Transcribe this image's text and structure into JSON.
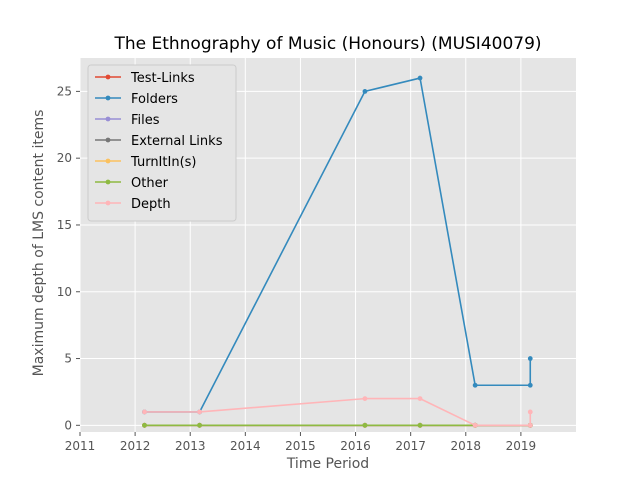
{
  "chart_data": {
    "type": "line",
    "title": "The Ethnography of Music (Honours) (MUSI40079)",
    "xlabel": "Time Period",
    "ylabel": "Maximum depth of LMS content items",
    "xlim": [
      2011,
      2020
    ],
    "ylim": [
      -0.5,
      27.5
    ],
    "xticks": [
      "2011",
      "2012",
      "2013",
      "2014",
      "2015",
      "2016",
      "2017",
      "2018",
      "2019"
    ],
    "yticks": [
      "0",
      "5",
      "10",
      "15",
      "20",
      "25"
    ],
    "grid": true,
    "legend_position": "upper-left",
    "series": [
      {
        "name": "Test-Links",
        "color": "#e24a33",
        "points": [
          [
            2012.17,
            0
          ],
          [
            2013.17,
            0
          ],
          [
            2016.17,
            0
          ],
          [
            2017.17,
            0
          ],
          [
            2018.17,
            0
          ],
          [
            2019.17,
            0
          ]
        ]
      },
      {
        "name": "Folders",
        "color": "#348abd",
        "points": [
          [
            2012.17,
            1
          ],
          [
            2013.17,
            1
          ],
          [
            2016.17,
            25
          ],
          [
            2017.17,
            26
          ],
          [
            2018.17,
            3
          ],
          [
            2019.17,
            3
          ],
          [
            2019.17,
            5
          ]
        ]
      },
      {
        "name": "Files",
        "color": "#988ed5",
        "points": [
          [
            2012.17,
            0
          ],
          [
            2013.17,
            0
          ],
          [
            2016.17,
            0
          ],
          [
            2017.17,
            0
          ],
          [
            2018.17,
            0
          ],
          [
            2019.17,
            0
          ]
        ]
      },
      {
        "name": "External Links",
        "color": "#777777",
        "points": [
          [
            2012.17,
            0
          ],
          [
            2013.17,
            0
          ],
          [
            2016.17,
            0
          ],
          [
            2017.17,
            0
          ],
          [
            2018.17,
            0
          ],
          [
            2019.17,
            0
          ]
        ]
      },
      {
        "name": "TurnItIn(s)",
        "color": "#fbc15e",
        "points": [
          [
            2012.17,
            0
          ],
          [
            2013.17,
            0
          ],
          [
            2016.17,
            0
          ],
          [
            2017.17,
            0
          ],
          [
            2018.17,
            0
          ],
          [
            2019.17,
            0
          ]
        ]
      },
      {
        "name": "Other",
        "color": "#8eba42",
        "points": [
          [
            2012.17,
            0
          ],
          [
            2013.17,
            0
          ],
          [
            2016.17,
            0
          ],
          [
            2017.17,
            0
          ],
          [
            2018.17,
            0
          ],
          [
            2019.17,
            0
          ]
        ]
      },
      {
        "name": "Depth",
        "color": "#ffb5b8",
        "points": [
          [
            2012.17,
            1
          ],
          [
            2013.17,
            1
          ],
          [
            2016.17,
            2
          ],
          [
            2017.17,
            2
          ],
          [
            2018.17,
            0
          ],
          [
            2019.17,
            0
          ],
          [
            2019.17,
            1
          ]
        ]
      }
    ]
  }
}
